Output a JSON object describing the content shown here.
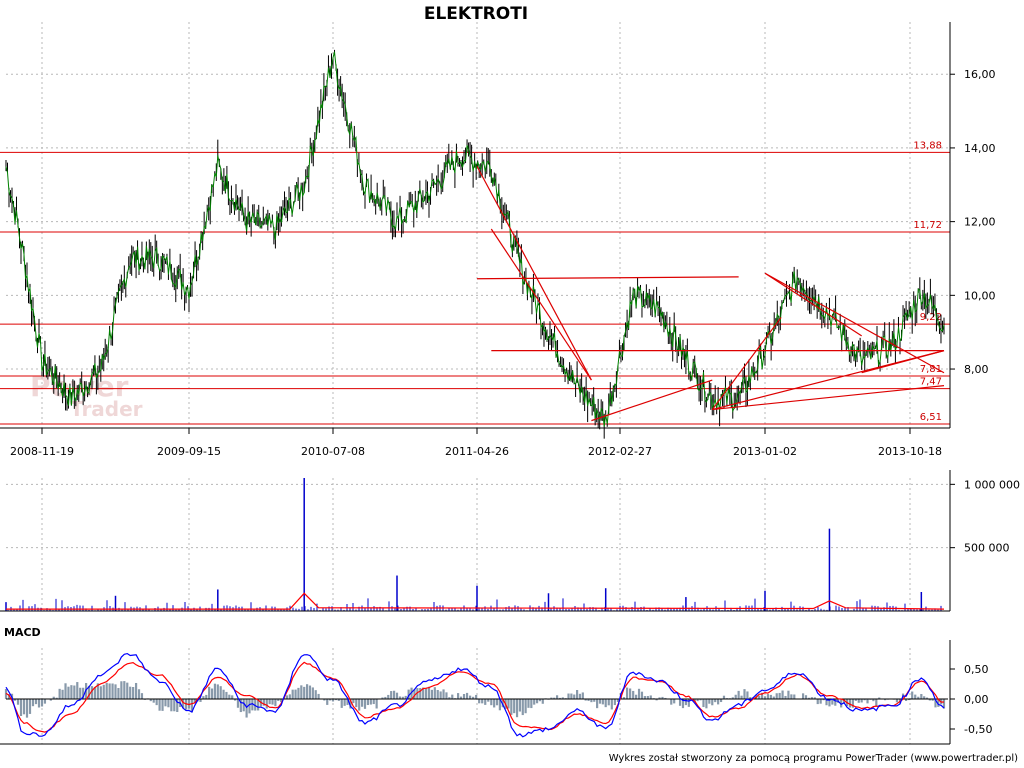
{
  "chart_data": [
    {
      "panel": "price",
      "type": "line",
      "title": "ELEKTROTI",
      "x_tick_labels": [
        "2008-11-19",
        "2009-09-15",
        "2010-07-08",
        "2011-04-26",
        "2012-02-27",
        "2013-01-02",
        "2013-10-18"
      ],
      "y_tick_labels": [
        "8,00",
        "10,00",
        "12,00",
        "14,00",
        "16,00"
      ],
      "y_ticks": [
        8,
        10,
        12,
        14,
        16
      ],
      "ylim": [
        6.4,
        17.2
      ],
      "grid": true,
      "colors": {
        "price_line": "#008000",
        "bar": "#000000",
        "levels": "#dd0000"
      },
      "series": [
        {
          "x": [
            "2008-07",
            "2008-09",
            "2008-11",
            "2009-01",
            "2009-03",
            "2009-05",
            "2009-07",
            "2009-09",
            "2009-11",
            "2010-01",
            "2010-03",
            "2010-05",
            "2010-07",
            "2010-09",
            "2010-11",
            "2011-01",
            "2011-03",
            "2011-05",
            "2011-07",
            "2011-09",
            "2011-11",
            "2012-01",
            "2012-03",
            "2012-05",
            "2012-07",
            "2012-09",
            "2012-11",
            "2013-01",
            "2013-03",
            "2013-05",
            "2013-07",
            "2013-09",
            "2013-11",
            "2014-01"
          ],
          "values": [
            13.5,
            11.0,
            8.2,
            7.2,
            8.0,
            11.0,
            11.0,
            10.2,
            13.5,
            12.0,
            11.8,
            13.0,
            16.5,
            13.0,
            12.0,
            12.8,
            13.8,
            13.5,
            10.8,
            9.0,
            7.5,
            6.6,
            10.0,
            9.6,
            8.3,
            7.2,
            7.2,
            8.5,
            10.5,
            9.5,
            8.2,
            8.7,
            10.1,
            9.2
          ]
        }
      ],
      "levels": [
        {
          "label": "13,88",
          "value": 13.88
        },
        {
          "label": "11,72",
          "value": 11.72
        },
        {
          "label": "9,22",
          "value": 9.22
        },
        {
          "label": "7,81",
          "value": 7.81
        },
        {
          "label": "7,47",
          "value": 7.47
        },
        {
          "label": "6,51",
          "value": 6.51
        }
      ],
      "channel_lines": [
        {
          "x": [
            "2011-04",
            "2012-11"
          ],
          "y": [
            10.45,
            10.5
          ]
        },
        {
          "x": [
            "2011-05",
            "2014-01"
          ],
          "y": [
            8.5,
            8.5
          ]
        }
      ],
      "trend_lines": [
        {
          "x": [
            "2011-04",
            "2011-12"
          ],
          "y": [
            13.5,
            7.7
          ]
        },
        {
          "x": [
            "2011-05",
            "2011-12"
          ],
          "y": [
            11.8,
            7.7
          ]
        },
        {
          "x": [
            "2011-12",
            "2012-09"
          ],
          "y": [
            6.6,
            7.7
          ]
        },
        {
          "x": [
            "2012-09",
            "2014-01"
          ],
          "y": [
            6.9,
            8.5
          ]
        },
        {
          "x": [
            "2012-09",
            "2014-01"
          ],
          "y": [
            6.9,
            7.55
          ]
        },
        {
          "x": [
            "2012-09",
            "2013-02"
          ],
          "y": [
            6.9,
            9.4
          ]
        },
        {
          "x": [
            "2013-01",
            "2013-07"
          ],
          "y": [
            10.6,
            8.9
          ]
        },
        {
          "x": [
            "2013-01",
            "2014-01"
          ],
          "y": [
            10.6,
            7.9
          ]
        },
        {
          "x": [
            "2013-07",
            "2014-01"
          ],
          "y": [
            7.9,
            8.5
          ]
        }
      ]
    },
    {
      "panel": "volume",
      "type": "bar",
      "y_tick_labels": [
        "500 000",
        "1 000 000"
      ],
      "y_ticks": [
        500000,
        1000000
      ],
      "ylim": [
        0,
        1050000
      ],
      "grid": true,
      "colors": {
        "bars": "#0000cc",
        "average": "#ff0000"
      },
      "spikes": [
        {
          "x": "2008-07",
          "value": 70000
        },
        {
          "x": "2009-04",
          "value": 120000
        },
        {
          "x": "2009-11",
          "value": 170000
        },
        {
          "x": "2010-05",
          "value": 1050000
        },
        {
          "x": "2010-11",
          "value": 280000
        },
        {
          "x": "2011-04",
          "value": 200000
        },
        {
          "x": "2011-09",
          "value": 140000
        },
        {
          "x": "2012-01",
          "value": 180000
        },
        {
          "x": "2012-07",
          "value": 110000
        },
        {
          "x": "2013-01",
          "value": 160000
        },
        {
          "x": "2013-05",
          "value": 650000
        },
        {
          "x": "2013-11",
          "value": 150000
        }
      ],
      "average_values": [
        {
          "x": "2008-07",
          "value": 15000
        },
        {
          "x": "2010-04",
          "value": 15000
        },
        {
          "x": "2010-05",
          "value": 140000
        },
        {
          "x": "2010-06",
          "value": 25000
        },
        {
          "x": "2013-04",
          "value": 20000
        },
        {
          "x": "2013-05",
          "value": 80000
        },
        {
          "x": "2013-06",
          "value": 25000
        },
        {
          "x": "2014-01",
          "value": 15000
        }
      ]
    },
    {
      "panel": "macd",
      "type": "line",
      "label": "MACD",
      "y_tick_labels": [
        "-0,50",
        "0,00",
        "0,50"
      ],
      "y_ticks": [
        -0.5,
        0,
        0.5
      ],
      "ylim": [
        -0.75,
        0.85
      ],
      "colors": {
        "macd": "#0000ff",
        "signal": "#ff0000",
        "histogram": "#8899aa",
        "zero": "#000000"
      },
      "series": [
        {
          "name": "macd",
          "x": [
            "2008-07",
            "2008-09",
            "2008-11",
            "2009-01",
            "2009-03",
            "2009-05",
            "2009-07",
            "2009-09",
            "2009-11",
            "2010-01",
            "2010-03",
            "2010-05",
            "2010-07",
            "2010-09",
            "2010-11",
            "2011-01",
            "2011-03",
            "2011-05",
            "2011-07",
            "2011-09",
            "2011-11",
            "2012-01",
            "2012-03",
            "2012-05",
            "2012-07",
            "2012-09",
            "2012-11",
            "2013-01",
            "2013-03",
            "2013-05",
            "2013-07",
            "2013-09",
            "2013-11",
            "2014-01"
          ],
          "values": [
            0.2,
            -0.55,
            -0.6,
            -0.1,
            0.4,
            0.75,
            0.3,
            -0.2,
            0.5,
            -0.1,
            -0.2,
            0.75,
            0.3,
            -0.4,
            -0.1,
            0.3,
            0.5,
            0.2,
            -0.6,
            -0.5,
            -0.2,
            -0.5,
            0.45,
            0.3,
            0.0,
            -0.35,
            -0.1,
            0.15,
            0.45,
            0.0,
            -0.2,
            -0.1,
            0.35,
            -0.15
          ]
        },
        {
          "name": "signal",
          "x": [
            "2008-07",
            "2008-09",
            "2008-11",
            "2009-01",
            "2009-03",
            "2009-05",
            "2009-07",
            "2009-09",
            "2009-11",
            "2010-01",
            "2010-03",
            "2010-05",
            "2010-07",
            "2010-09",
            "2010-11",
            "2011-01",
            "2011-03",
            "2011-05",
            "2011-07",
            "2011-09",
            "2011-11",
            "2012-01",
            "2012-03",
            "2012-05",
            "2012-07",
            "2012-09",
            "2012-11",
            "2013-01",
            "2013-03",
            "2013-05",
            "2013-07",
            "2013-09",
            "2013-11",
            "2014-01"
          ],
          "values": [
            0.1,
            -0.4,
            -0.55,
            -0.25,
            0.25,
            0.6,
            0.4,
            -0.1,
            0.35,
            0.05,
            -0.15,
            0.6,
            0.35,
            -0.3,
            -0.15,
            0.2,
            0.45,
            0.25,
            -0.45,
            -0.5,
            -0.25,
            -0.4,
            0.35,
            0.3,
            0.05,
            -0.3,
            -0.15,
            0.1,
            0.4,
            0.05,
            -0.15,
            -0.1,
            0.3,
            -0.05
          ]
        }
      ]
    }
  ],
  "watermark": {
    "line1": "Power",
    "line2": "Trader"
  },
  "footer": "Wykres został stworzony za pomocą programu PowerTrader (www.powertrader.pl)"
}
